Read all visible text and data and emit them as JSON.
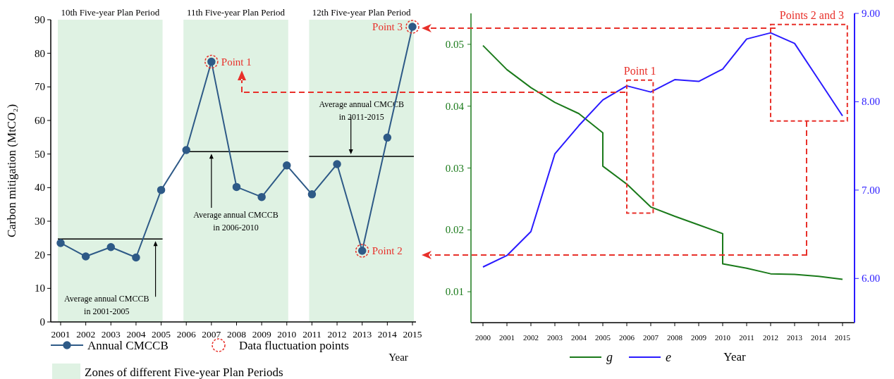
{
  "chart_data": [
    {
      "type": "line",
      "ylabel": "Carbon mitigation (MtCO₂)",
      "xlabel": "Year",
      "categories": [
        "2001",
        "2002",
        "2003",
        "2004",
        "2005",
        "2006",
        "2007",
        "2008",
        "2009",
        "2010",
        "2011",
        "2012",
        "2013",
        "2014",
        "2015"
      ],
      "series": [
        {
          "name": "Annual CMCCB",
          "type": "line",
          "marker": "circle",
          "color": "#2e5a87",
          "values": [
            23.5,
            19.5,
            22.3,
            19.2,
            39.3,
            51.2,
            77.5,
            40.2,
            37.2,
            46.6,
            38.0,
            47.0,
            21.2,
            54.9,
            87.9
          ]
        },
        {
          "name": "Data fluctuation points",
          "type": "scatter",
          "marker": "circle",
          "color": "#e8302a",
          "values": [
            null,
            null,
            null,
            null,
            null,
            null,
            77.5,
            null,
            null,
            null,
            null,
            null,
            21.2,
            null,
            87.9
          ]
        }
      ],
      "ylim": [
        0,
        90
      ],
      "yticks": [
        0,
        10,
        20,
        30,
        40,
        50,
        60,
        70,
        80,
        90
      ],
      "bands": [
        {
          "axis": "x",
          "from": "2001",
          "to": "2005",
          "label": "10th Five-year Plan Period",
          "color": "#dff2e3"
        },
        {
          "axis": "x",
          "from": "2006",
          "to": "2010",
          "label": "11th Five-year Plan Period",
          "color": "#dff2e3"
        },
        {
          "axis": "x",
          "from": "2011",
          "to": "2015",
          "label": "12th Five-year Plan Period",
          "color": "#dff2e3"
        }
      ],
      "ref_lines": [
        {
          "axis": "y",
          "value": 24.7,
          "label": "Average annual CMCCB in 2001-2005",
          "color": "#000000"
        },
        {
          "axis": "y",
          "value": 50.7,
          "label": "Average annual CMCCB in 2006-2010",
          "color": "#000000"
        },
        {
          "axis": "y",
          "value": 49.3,
          "label": "Average annual CMCCB in 2011-2015",
          "color": "#000000"
        }
      ],
      "annotations": [
        {
          "text": "Point 1",
          "x": "2007",
          "y": 77.5
        },
        {
          "text": "Point 2",
          "x": "2013",
          "y": 21.2
        },
        {
          "text": "Point 3",
          "x": "2015",
          "y": 87.9
        },
        "Zones of different Five-year Plan Periods"
      ],
      "legend": "bottom"
    },
    {
      "type": "line",
      "xlabel": "Year",
      "series": [
        {
          "name": "g",
          "color": "#1a7a1a",
          "x": [
            2000,
            2001,
            2002,
            2003,
            2004,
            2005,
            2005,
            2006,
            2007,
            2008,
            2009,
            2010,
            2010,
            2011,
            2012,
            2013,
            2014,
            2015
          ],
          "values": [
            0.0498,
            0.0459,
            0.043,
            0.0406,
            0.0388,
            0.0357,
            0.0303,
            0.0274,
            0.0237,
            0.0222,
            0.0208,
            0.0194,
            0.0145,
            0.0138,
            0.0129,
            0.0128,
            0.0125,
            0.012
          ]
        },
        {
          "name": "e",
          "color": "#2a1aff",
          "axis": "y2",
          "x": [
            2000,
            2001,
            2002,
            2003,
            2004,
            2005,
            2006,
            2007,
            2008,
            2009,
            2010,
            2011,
            2012,
            2013,
            2014,
            2015
          ],
          "values": [
            6.13,
            6.26,
            6.53,
            7.41,
            7.73,
            8.02,
            8.18,
            8.11,
            8.25,
            8.23,
            8.37,
            8.71,
            8.78,
            8.66,
            8.25,
            7.84
          ]
        }
      ],
      "xlim": [
        1999.5,
        2015.5
      ],
      "xticks": [
        2000,
        2001,
        2002,
        2003,
        2004,
        2005,
        2006,
        2007,
        2008,
        2009,
        2010,
        2011,
        2012,
        2013,
        2014,
        2015
      ],
      "ylim": [
        0.005,
        0.055
      ],
      "yticks": [
        0.01,
        0.02,
        0.03,
        0.04,
        0.05
      ],
      "y2lim": [
        5.5,
        9
      ],
      "y2ticks": [
        {
          "value": 6,
          "label": "6.00"
        },
        {
          "value": 7,
          "label": "7.00"
        },
        {
          "value": 8,
          "label": "8.00"
        },
        {
          "value": 9,
          "label": "9.00"
        }
      ],
      "annotations": [
        "Point 1",
        "Points 2 and 3"
      ],
      "legend": "bottom"
    }
  ]
}
